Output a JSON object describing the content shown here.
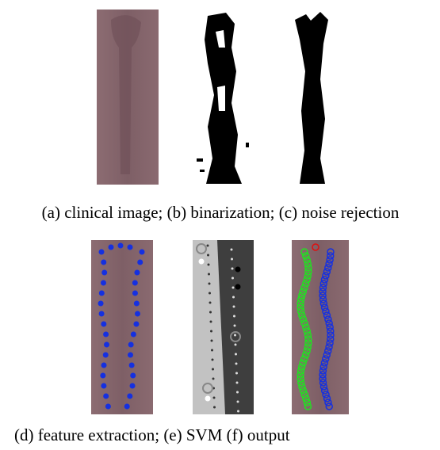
{
  "captions": [
    "(a) clinical image; (b) binarization; (c) noise rejection",
    "(d) feature extraction; (e) SVM (f) output"
  ]
}
